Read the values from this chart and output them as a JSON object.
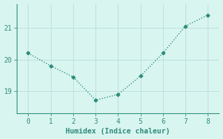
{
  "x": [
    0,
    1,
    2,
    3,
    4,
    5,
    6,
    7,
    8
  ],
  "y": [
    20.2,
    19.8,
    19.45,
    18.72,
    18.9,
    19.48,
    20.2,
    21.05,
    21.4
  ],
  "line_color": "#2e8b7a",
  "marker": "D",
  "marker_size": 2.5,
  "linestyle": "dotted",
  "linewidth": 1.0,
  "xlabel": "Humidex (Indice chaleur)",
  "xlabel_fontsize": 7.5,
  "background_color": "#d8f5f0",
  "grid_color": "#b8ddd8",
  "yticks": [
    19,
    20,
    21
  ],
  "xticks": [
    0,
    1,
    2,
    3,
    4,
    5,
    6,
    7,
    8
  ],
  "xlim": [
    -0.5,
    8.5
  ],
  "ylim": [
    18.3,
    21.75
  ],
  "tick_fontsize": 7,
  "tick_color": "#2e8b7a",
  "font_family": "monospace",
  "spine_color": "#2e8b7a"
}
